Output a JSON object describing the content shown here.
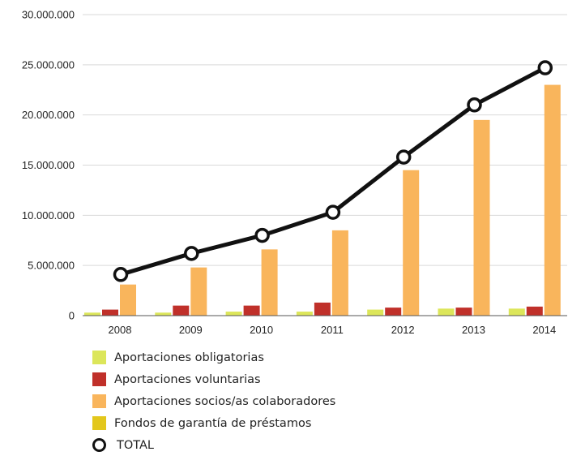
{
  "chart_data": {
    "type": "bar",
    "categories": [
      "2008",
      "2009",
      "2010",
      "2011",
      "2012",
      "2013",
      "2014"
    ],
    "ylim": [
      0,
      30000000
    ],
    "yticks": [
      0,
      5000000,
      10000000,
      15000000,
      20000000,
      25000000,
      30000000
    ],
    "ytick_labels": [
      "0",
      "5.000.000",
      "10.000.000",
      "15.000.000",
      "20.000.000",
      "25.000.000",
      "30.000.000"
    ],
    "grid": true,
    "legend_position": "bottom",
    "series": [
      {
        "name": "Aportaciones obligatorias",
        "color": "#dce65a",
        "values": [
          300000,
          300000,
          400000,
          400000,
          600000,
          700000,
          700000
        ]
      },
      {
        "name": "Aportaciones voluntarias",
        "color": "#c0302a",
        "values": [
          600000,
          1000000,
          1000000,
          1300000,
          800000,
          800000,
          900000
        ]
      },
      {
        "name": "Aportaciones socios/as colaboradores",
        "color": "#f9b55c",
        "values": [
          3100000,
          4800000,
          6600000,
          8500000,
          14500000,
          19500000,
          23000000
        ]
      },
      {
        "name": "Fondos de garantía de préstamos",
        "color": "#e3c71c",
        "values": [
          0,
          0,
          0,
          0,
          0,
          0,
          0
        ]
      }
    ],
    "line_series": {
      "name": "TOTAL",
      "color": "#111111",
      "values": [
        4100000,
        6200000,
        8000000,
        10300000,
        15800000,
        21000000,
        24700000
      ]
    }
  }
}
